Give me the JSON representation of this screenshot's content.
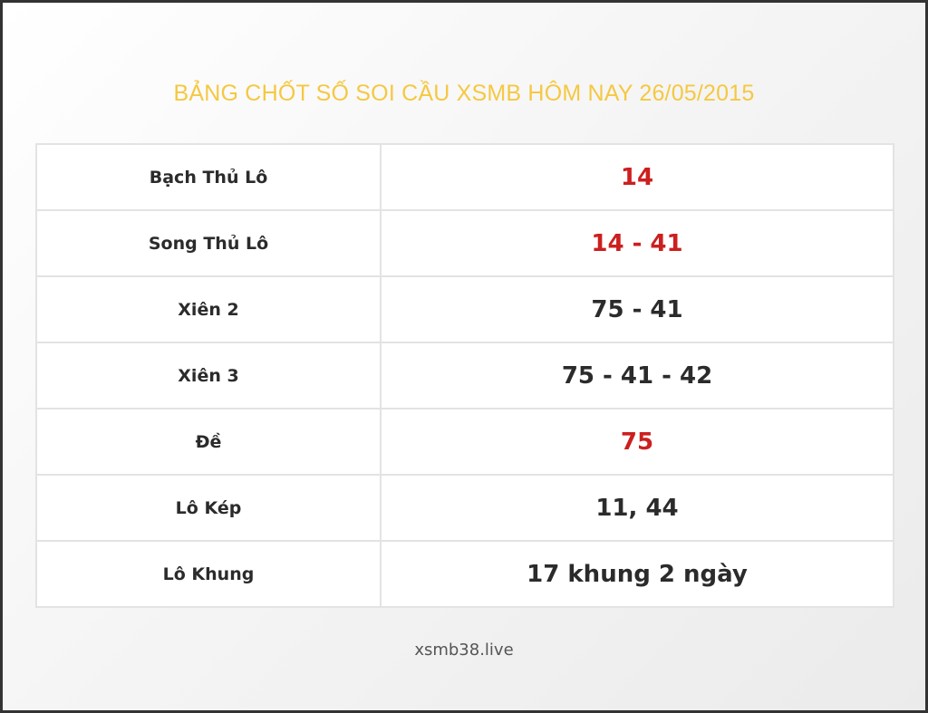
{
  "title": "BẢNG CHỐT SỐ SOI CẦU XSMB HÔM NAY 26/05/2015",
  "rows": [
    {
      "label": "Bạch Thủ Lô",
      "value": "14",
      "highlight": true
    },
    {
      "label": "Song Thủ Lô",
      "value": "14 - 41",
      "highlight": true
    },
    {
      "label": "Xiên 2",
      "value": "75 - 41",
      "highlight": false
    },
    {
      "label": "Xiên 3",
      "value": "75 - 41 - 42",
      "highlight": false
    },
    {
      "label": "Đề",
      "value": "75",
      "highlight": true
    },
    {
      "label": "Lô Kép",
      "value": "11, 44",
      "highlight": false
    },
    {
      "label": "Lô Khung",
      "value": "17 khung 2 ngày",
      "highlight": false
    }
  ],
  "footer": "xsmb38.live",
  "colors": {
    "title": "#f5c842",
    "highlight": "#cc1f1f",
    "text": "#2b2b2b"
  }
}
